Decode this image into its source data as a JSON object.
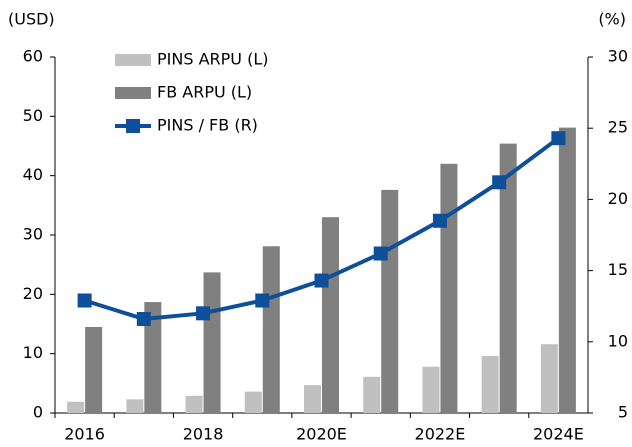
{
  "chart_data": {
    "type": "bar_line",
    "y_label": "(USD)",
    "y2_label": "(%)",
    "categories": [
      "2016",
      null,
      "2018",
      null,
      "2020E",
      null,
      "2022E",
      null,
      "2024E"
    ],
    "series": [
      {
        "name": "PINS ARPU (L)",
        "type": "bar",
        "color": "#c0c0c0",
        "values": [
          1.9,
          2.3,
          2.9,
          3.6,
          4.7,
          6.1,
          7.8,
          9.6,
          11.6
        ]
      },
      {
        "name": "FB ARPU (L)",
        "type": "bar",
        "color": "#808080",
        "values": [
          14.5,
          18.7,
          23.7,
          28.1,
          33.0,
          37.6,
          42.0,
          45.4,
          48.1
        ]
      },
      {
        "name": "PINS / FB (R)",
        "type": "line",
        "axis": "y2",
        "color": "#0d4f9a",
        "values": [
          12.9,
          11.6,
          12.0,
          12.9,
          14.3,
          16.2,
          18.5,
          21.2,
          24.3
        ]
      }
    ],
    "ylim": [
      0,
      60
    ],
    "yticks": [
      0,
      10,
      20,
      30,
      40,
      50,
      60
    ],
    "y2lim": [
      5,
      30
    ],
    "y2ticks": [
      5,
      10,
      15,
      20,
      25,
      30
    ],
    "legend": "top-left"
  }
}
